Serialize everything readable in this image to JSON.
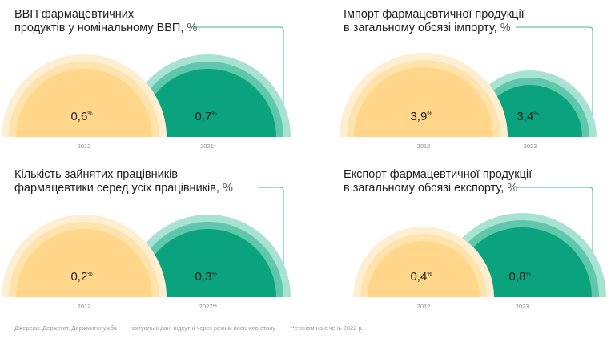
{
  "colors": {
    "orange_main": "#FFD68A",
    "orange_ring1": "#FFE3AD",
    "orange_ring2": "#FFEFD2",
    "green_main": "#0BA37E",
    "green_ring1": "#5FC7AA",
    "green_ring2": "#A7E2D2",
    "connector": "#39B89A",
    "year_text": "#8a8a8a"
  },
  "chart_data": [
    {
      "type": "semicircle-comparison",
      "title_line1": "ВВП фармацевтичних",
      "title_line2": "продуктів у номінальному ВВП, ",
      "unit": "%",
      "categories": [
        "2012",
        "2021*"
      ],
      "values": [
        0.6,
        0.7
      ],
      "value_labels": [
        "0,6",
        "0,7"
      ]
    },
    {
      "type": "semicircle-comparison",
      "title_line1": "Імпорт фармацевтичної продукції",
      "title_line2": "в загальному обсязі імпорту, ",
      "unit": "%",
      "categories": [
        "2012",
        "2023"
      ],
      "values": [
        3.9,
        3.4
      ],
      "value_labels": [
        "3,9",
        "3,4"
      ]
    },
    {
      "type": "semicircle-comparison",
      "title_line1": "Кількість зайнятих працівників",
      "title_line2": "фармацевтики серед усіх працівників, ",
      "unit": "%",
      "categories": [
        "2012",
        "2022**"
      ],
      "values": [
        0.2,
        0.3
      ],
      "value_labels": [
        "0,2",
        "0,3"
      ]
    },
    {
      "type": "semicircle-comparison",
      "title_line1": "Експорт фармацевтичної продукції",
      "title_line2": "в загальному обсязі експорту, ",
      "unit": "%",
      "categories": [
        "2012",
        "2023"
      ],
      "values": [
        0.4,
        0.8
      ],
      "value_labels": [
        "0,4",
        "0,8"
      ]
    }
  ],
  "footer": {
    "sources": "Джерела: Держстат, Держмитслужба",
    "note1": "*актуальні дані відсутні через режим воєнного стану",
    "note2": "**станом на січень 2022 р."
  }
}
